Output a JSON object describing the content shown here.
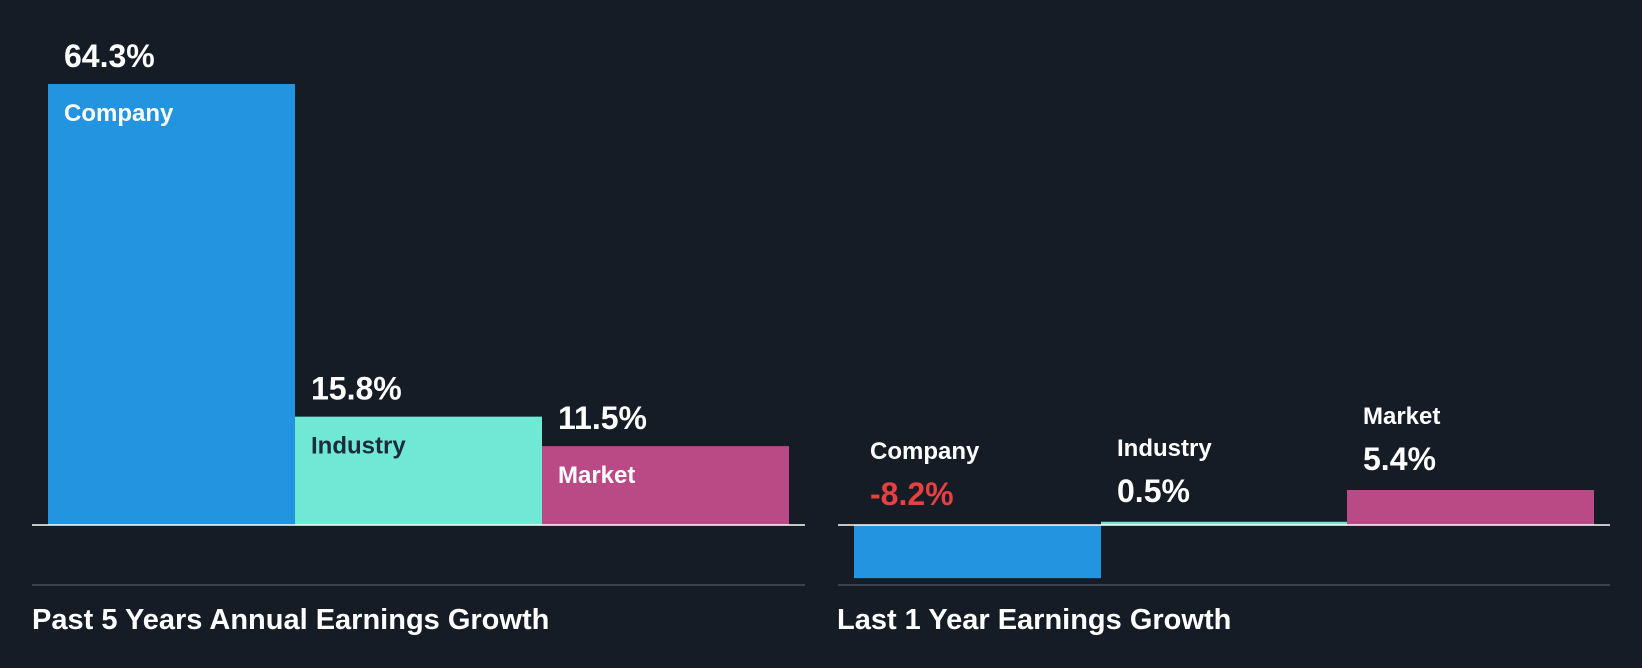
{
  "colors": {
    "background": "#161c25",
    "company": "#2394e0",
    "industry": "#6fe8d5",
    "market": "#ba4a86",
    "positive_text": "#ffffff",
    "negative_text": "#e64040",
    "label_on_light": "#1d2b3a",
    "axis": "#ffffff",
    "divider": "#3b424c"
  },
  "chart_data": [
    {
      "type": "bar",
      "title": "Past 5 Years Annual Earnings Growth",
      "categories": [
        "Company",
        "Industry",
        "Market"
      ],
      "values": [
        64.3,
        15.8,
        11.5
      ],
      "value_labels": [
        "64.3%",
        "15.8%",
        "11.5%"
      ],
      "unit": "%"
    },
    {
      "type": "bar",
      "title": "Last 1 Year Earnings Growth",
      "categories": [
        "Company",
        "Industry",
        "Market"
      ],
      "values": [
        -8.2,
        0.5,
        5.4
      ],
      "value_labels": [
        "-8.2%",
        "0.5%",
        "5.4%"
      ],
      "unit": "%"
    }
  ]
}
